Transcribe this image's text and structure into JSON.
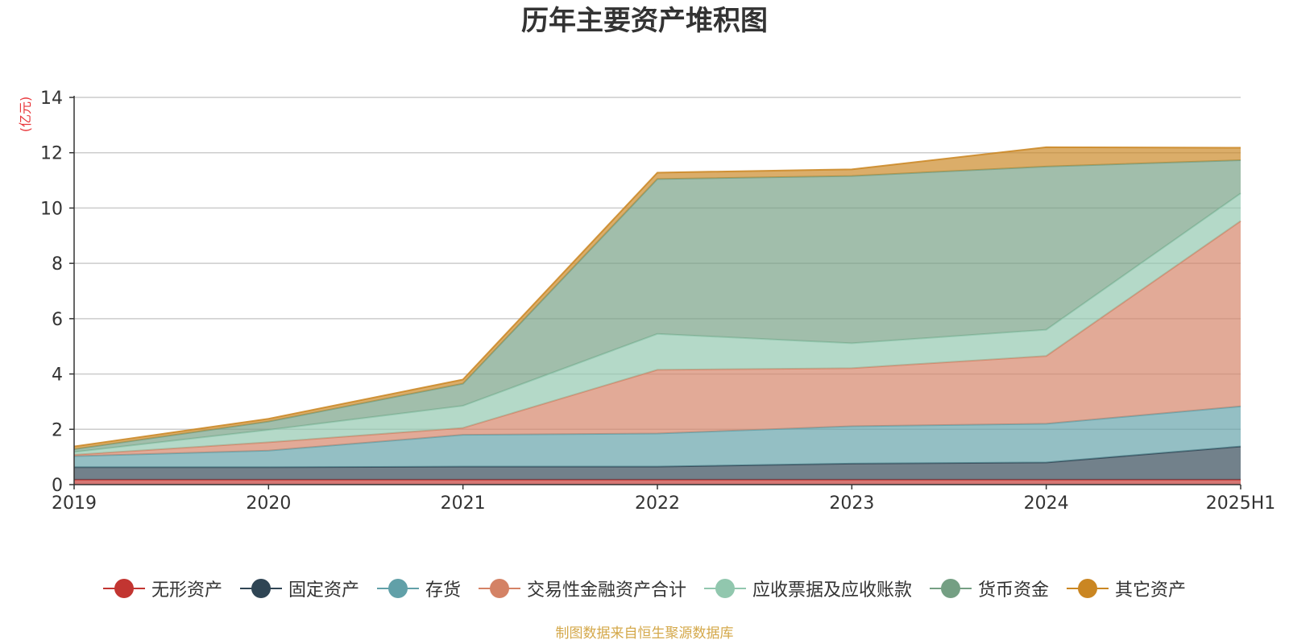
{
  "chart_data": {
    "type": "area",
    "stacked": true,
    "title": "历年主要资产堆积图",
    "ylabel": "(亿元)",
    "xlabel": "",
    "x": [
      "2019",
      "2020",
      "2021",
      "2022",
      "2023",
      "2024",
      "2025H1"
    ],
    "ylim": [
      0,
      14
    ],
    "yticks": [
      0,
      2,
      4,
      6,
      8,
      10,
      12,
      14
    ],
    "grid": true,
    "legend_position": "bottom",
    "series": [
      {
        "name": "无形资产",
        "color": "#c23531",
        "values": [
          0.18,
          0.18,
          0.18,
          0.18,
          0.18,
          0.18,
          0.18
        ]
      },
      {
        "name": "固定资产",
        "color": "#2f4554",
        "values": [
          0.45,
          0.45,
          0.47,
          0.47,
          0.58,
          0.62,
          1.2
        ]
      },
      {
        "name": "存货",
        "color": "#61a0a8",
        "values": [
          0.4,
          0.6,
          1.15,
          1.2,
          1.35,
          1.4,
          1.45
        ]
      },
      {
        "name": "交易性金融资产合计",
        "color": "#d48265",
        "values": [
          0.05,
          0.3,
          0.25,
          2.3,
          2.1,
          2.45,
          6.7
        ]
      },
      {
        "name": "应收票据及应收账款",
        "color": "#91c7ae",
        "values": [
          0.1,
          0.45,
          0.8,
          1.3,
          0.9,
          0.95,
          1.0
        ]
      },
      {
        "name": "货币资金",
        "color": "#749f83",
        "values": [
          0.1,
          0.3,
          0.8,
          5.6,
          6.05,
          5.9,
          1.2
        ]
      },
      {
        "name": "其它资产",
        "color": "#ca8622",
        "values": [
          0.1,
          0.1,
          0.15,
          0.23,
          0.24,
          0.7,
          0.45
        ]
      }
    ]
  },
  "source_note": "制图数据来自恒生聚源数据库"
}
